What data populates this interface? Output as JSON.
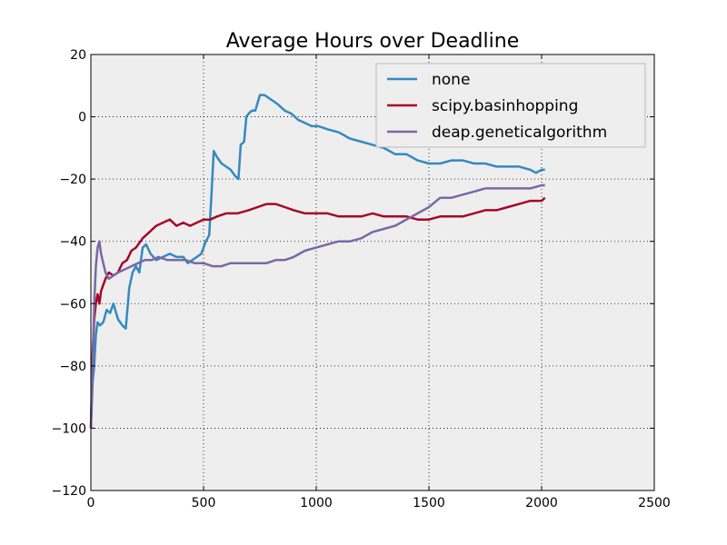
{
  "chart_data": {
    "type": "line",
    "title": "Average Hours over Deadline",
    "xlabel": "",
    "ylabel": "",
    "xlim": [
      0,
      2500
    ],
    "ylim": [
      -120,
      20
    ],
    "xticks": [
      0,
      500,
      1000,
      1500,
      2000,
      2500
    ],
    "yticks": [
      -120,
      -100,
      -80,
      -60,
      -40,
      -20,
      0,
      20
    ],
    "grid": true,
    "legend_position": "top-right",
    "background": "#EEEEEE",
    "series": [
      {
        "name": "none",
        "color": "#348ABD",
        "points": [
          [
            0,
            -100
          ],
          [
            8,
            -85
          ],
          [
            15,
            -80
          ],
          [
            22,
            -70
          ],
          [
            30,
            -66
          ],
          [
            40,
            -67
          ],
          [
            55,
            -66
          ],
          [
            70,
            -62
          ],
          [
            85,
            -63
          ],
          [
            100,
            -60
          ],
          [
            120,
            -65
          ],
          [
            140,
            -67
          ],
          [
            155,
            -68
          ],
          [
            170,
            -55
          ],
          [
            185,
            -50
          ],
          [
            200,
            -48
          ],
          [
            215,
            -50
          ],
          [
            230,
            -42
          ],
          [
            245,
            -41
          ],
          [
            265,
            -44
          ],
          [
            290,
            -46
          ],
          [
            320,
            -45
          ],
          [
            350,
            -44
          ],
          [
            380,
            -45
          ],
          [
            410,
            -45
          ],
          [
            430,
            -47
          ],
          [
            450,
            -46
          ],
          [
            470,
            -45
          ],
          [
            490,
            -44
          ],
          [
            510,
            -40
          ],
          [
            525,
            -38
          ],
          [
            535,
            -25
          ],
          [
            545,
            -11
          ],
          [
            560,
            -13
          ],
          [
            580,
            -15
          ],
          [
            600,
            -16
          ],
          [
            620,
            -17
          ],
          [
            640,
            -19
          ],
          [
            655,
            -20
          ],
          [
            665,
            -9
          ],
          [
            680,
            -8
          ],
          [
            690,
            0
          ],
          [
            700,
            1
          ],
          [
            715,
            2
          ],
          [
            730,
            2
          ],
          [
            750,
            7
          ],
          [
            770,
            7
          ],
          [
            790,
            6
          ],
          [
            810,
            5
          ],
          [
            830,
            4
          ],
          [
            860,
            2
          ],
          [
            890,
            1
          ],
          [
            920,
            -1
          ],
          [
            950,
            -2
          ],
          [
            980,
            -3
          ],
          [
            1010,
            -3
          ],
          [
            1050,
            -4
          ],
          [
            1100,
            -5
          ],
          [
            1150,
            -7
          ],
          [
            1200,
            -8
          ],
          [
            1250,
            -9
          ],
          [
            1300,
            -10
          ],
          [
            1350,
            -12
          ],
          [
            1400,
            -12
          ],
          [
            1450,
            -14
          ],
          [
            1500,
            -15
          ],
          [
            1550,
            -15
          ],
          [
            1600,
            -14
          ],
          [
            1650,
            -14
          ],
          [
            1700,
            -15
          ],
          [
            1750,
            -15
          ],
          [
            1800,
            -16
          ],
          [
            1850,
            -16
          ],
          [
            1900,
            -16
          ],
          [
            1950,
            -17
          ],
          [
            1975,
            -18
          ],
          [
            2000,
            -17
          ],
          [
            2015,
            -17
          ]
        ]
      },
      {
        "name": "scipy.basinhopping",
        "color": "#A60628",
        "points": [
          [
            0,
            -100
          ],
          [
            8,
            -75
          ],
          [
            15,
            -65
          ],
          [
            22,
            -60
          ],
          [
            30,
            -57
          ],
          [
            38,
            -60
          ],
          [
            45,
            -56
          ],
          [
            55,
            -54
          ],
          [
            65,
            -52
          ],
          [
            80,
            -50
          ],
          [
            100,
            -51
          ],
          [
            120,
            -50
          ],
          [
            140,
            -47
          ],
          [
            160,
            -46
          ],
          [
            180,
            -43
          ],
          [
            200,
            -42
          ],
          [
            230,
            -39
          ],
          [
            260,
            -37
          ],
          [
            290,
            -35
          ],
          [
            320,
            -34
          ],
          [
            350,
            -33
          ],
          [
            380,
            -35
          ],
          [
            410,
            -34
          ],
          [
            440,
            -35
          ],
          [
            470,
            -34
          ],
          [
            500,
            -33
          ],
          [
            530,
            -33
          ],
          [
            560,
            -32
          ],
          [
            600,
            -31
          ],
          [
            650,
            -31
          ],
          [
            700,
            -30
          ],
          [
            740,
            -29
          ],
          [
            780,
            -28
          ],
          [
            820,
            -28
          ],
          [
            860,
            -29
          ],
          [
            900,
            -30
          ],
          [
            950,
            -31
          ],
          [
            1000,
            -31
          ],
          [
            1050,
            -31
          ],
          [
            1100,
            -32
          ],
          [
            1150,
            -32
          ],
          [
            1200,
            -32
          ],
          [
            1250,
            -31
          ],
          [
            1300,
            -32
          ],
          [
            1350,
            -32
          ],
          [
            1400,
            -32
          ],
          [
            1450,
            -33
          ],
          [
            1500,
            -33
          ],
          [
            1550,
            -32
          ],
          [
            1600,
            -32
          ],
          [
            1650,
            -32
          ],
          [
            1700,
            -31
          ],
          [
            1750,
            -30
          ],
          [
            1800,
            -30
          ],
          [
            1850,
            -29
          ],
          [
            1900,
            -28
          ],
          [
            1950,
            -27
          ],
          [
            2000,
            -27
          ],
          [
            2015,
            -26
          ]
        ]
      },
      {
        "name": "deap.geneticalgorithm",
        "color": "#7A68A6",
        "points": [
          [
            0,
            -100
          ],
          [
            8,
            -80
          ],
          [
            15,
            -60
          ],
          [
            22,
            -48
          ],
          [
            30,
            -42
          ],
          [
            38,
            -40
          ],
          [
            45,
            -44
          ],
          [
            55,
            -47
          ],
          [
            65,
            -50
          ],
          [
            80,
            -52
          ],
          [
            100,
            -51
          ],
          [
            120,
            -50
          ],
          [
            150,
            -49
          ],
          [
            180,
            -48
          ],
          [
            210,
            -47
          ],
          [
            240,
            -46
          ],
          [
            270,
            -46
          ],
          [
            300,
            -45
          ],
          [
            340,
            -46
          ],
          [
            380,
            -46
          ],
          [
            420,
            -46
          ],
          [
            460,
            -47
          ],
          [
            500,
            -47
          ],
          [
            540,
            -48
          ],
          [
            580,
            -48
          ],
          [
            620,
            -47
          ],
          [
            660,
            -47
          ],
          [
            700,
            -47
          ],
          [
            740,
            -47
          ],
          [
            780,
            -47
          ],
          [
            820,
            -46
          ],
          [
            860,
            -46
          ],
          [
            900,
            -45
          ],
          [
            950,
            -43
          ],
          [
            1000,
            -42
          ],
          [
            1050,
            -41
          ],
          [
            1100,
            -40
          ],
          [
            1150,
            -40
          ],
          [
            1200,
            -39
          ],
          [
            1250,
            -37
          ],
          [
            1300,
            -36
          ],
          [
            1350,
            -35
          ],
          [
            1400,
            -33
          ],
          [
            1450,
            -31
          ],
          [
            1500,
            -29
          ],
          [
            1550,
            -26
          ],
          [
            1600,
            -26
          ],
          [
            1650,
            -25
          ],
          [
            1700,
            -24
          ],
          [
            1750,
            -23
          ],
          [
            1800,
            -23
          ],
          [
            1850,
            -23
          ],
          [
            1900,
            -23
          ],
          [
            1950,
            -23
          ],
          [
            2000,
            -22
          ],
          [
            2015,
            -22
          ]
        ]
      }
    ]
  }
}
